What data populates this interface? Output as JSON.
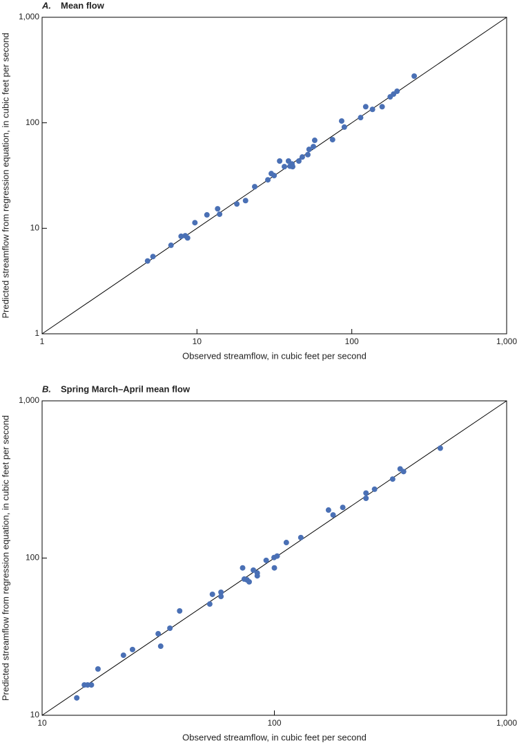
{
  "chart_data": [
    {
      "type": "scatter",
      "panel": "A.",
      "title": "Mean flow",
      "xlabel": "Observed streamflow, in cubic feet per second",
      "ylabel": "Predicted streamflow from regression equation, in cubic feet per second",
      "log_x": true,
      "log_y": true,
      "color": "#4a70b5",
      "xlim": [
        1,
        1000
      ],
      "ylim": [
        1,
        1000
      ],
      "xticks": [
        1,
        10,
        100,
        {
          "value": 1000,
          "label": "1,000"
        }
      ],
      "yticks": [
        1,
        10,
        100,
        {
          "value": 1000,
          "label": "1,000"
        }
      ],
      "x": [
        4.8,
        5.2,
        6.8,
        7.9,
        8.4,
        8.7,
        9.7,
        11.6,
        13.6,
        14.0,
        18.1,
        20.6,
        23.6,
        28.7,
        30.2,
        31.5,
        34.2,
        36.7,
        39.0,
        39.9,
        41.1,
        41.5,
        45.5,
        47.9,
        52.0,
        53.0,
        56.5,
        57.6,
        75.1,
        86,
        89.5,
        114,
        123,
        136,
        157,
        177,
        186,
        196,
        253
      ],
      "values": [
        4.9,
        5.4,
        6.9,
        8.4,
        8.5,
        8.1,
        11.3,
        13.4,
        15.3,
        13.6,
        17.0,
        18.3,
        24.8,
        28.8,
        33.0,
        31.6,
        43.4,
        38.4,
        43.4,
        38.8,
        40.7,
        38.4,
        43.4,
        47.4,
        49.9,
        56,
        59.5,
        68.2,
        69.2,
        104,
        91,
        112,
        142,
        134,
        142,
        176,
        187,
        199,
        277
      ]
    },
    {
      "type": "scatter",
      "panel": "B.",
      "title": "Spring March–April mean flow",
      "xlabel": "Observed streamflow, in cubic feet per second",
      "ylabel": "Predicted streamflow from regression equation, in cubic feet per second",
      "log_x": true,
      "log_y": true,
      "color": "#4a70b5",
      "xlim": [
        10,
        1000
      ],
      "ylim": [
        10,
        1000
      ],
      "xticks": [
        10,
        100,
        {
          "value": 1000,
          "label": "1,000"
        }
      ],
      "yticks": [
        10,
        100,
        {
          "value": 1000,
          "label": "1,000"
        }
      ],
      "x": [
        14.1,
        15.2,
        15.7,
        16.3,
        17.4,
        22.4,
        24.5,
        31.6,
        32.4,
        35.5,
        39.1,
        52.7,
        54.1,
        58.9,
        58.9,
        73.0,
        74.2,
        76.2,
        77.9,
        81.2,
        84.4,
        84.4,
        92.2,
        99.7,
        100,
        102.8,
        112.6,
        130,
        171,
        179,
        197,
        248,
        248,
        270,
        323,
        348,
        360,
        518
      ],
      "values": [
        12.9,
        15.6,
        15.6,
        15.6,
        19.7,
        24.1,
        26.2,
        33.0,
        27.5,
        35.8,
        46.1,
        51.0,
        58.8,
        60.6,
        57.0,
        86.6,
        73.5,
        72.7,
        70.6,
        83.8,
        80.3,
        77.1,
        96.7,
        100.8,
        86.6,
        103,
        125.5,
        135,
        202,
        188,
        210,
        259,
        240,
        274,
        318,
        369,
        355,
        500
      ]
    }
  ]
}
